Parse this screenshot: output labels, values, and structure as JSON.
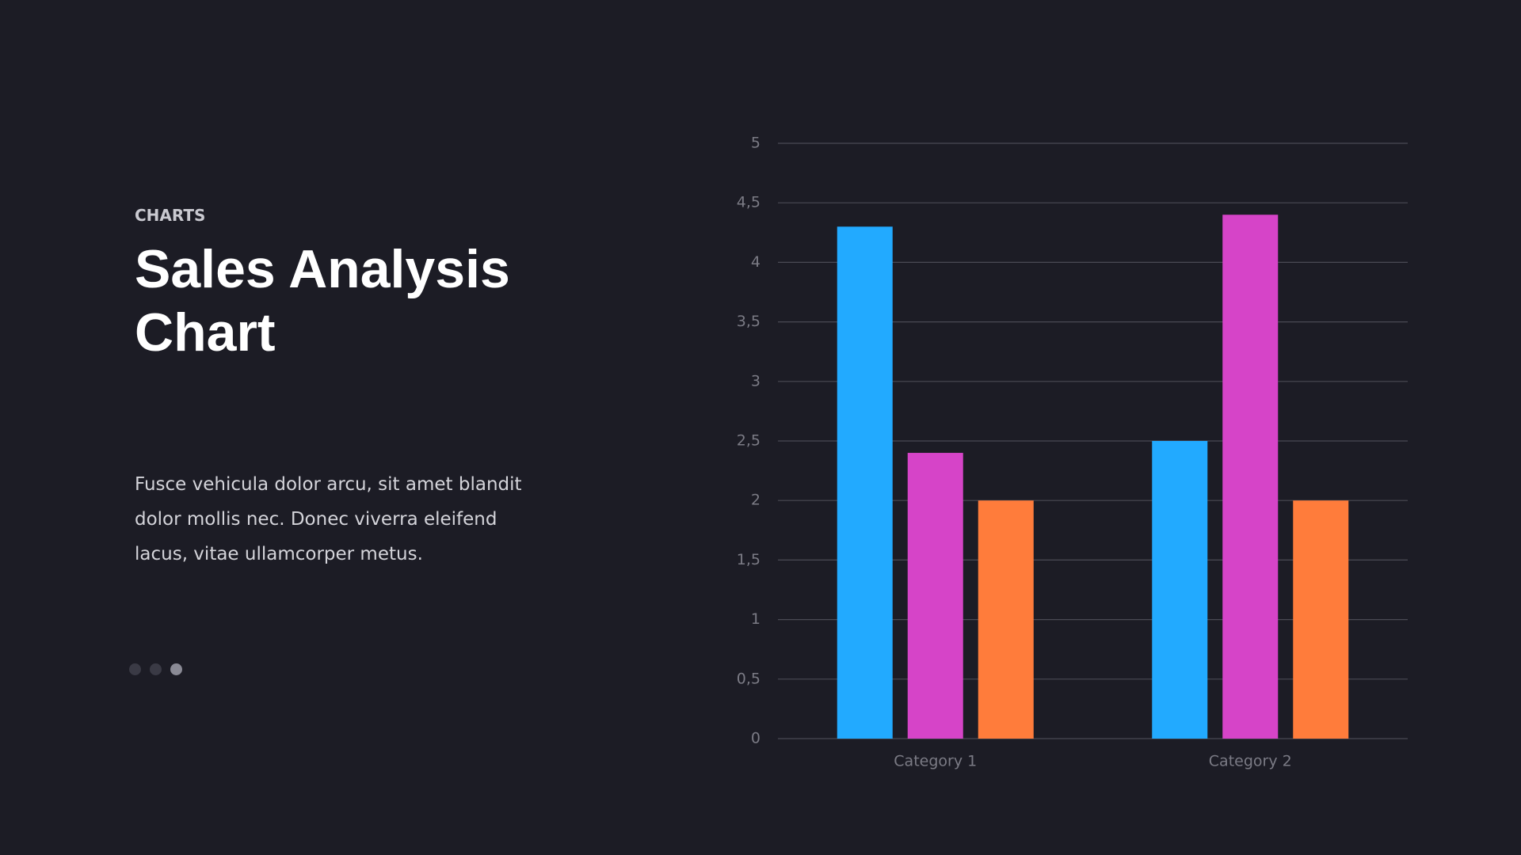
{
  "slide": {
    "eyebrow": "CHARTS",
    "title": "Sales Analysis Chart",
    "body": "Fusce vehicula dolor arcu, sit amet blandit dolor mollis nec. Donec viverra eleifend lacus, vitae ullamcorper metus."
  },
  "chart_data": {
    "type": "bar",
    "categories": [
      "Category 1",
      "Category 2"
    ],
    "series": [
      {
        "color": "#22aaff",
        "values": [
          4.3,
          2.5
        ]
      },
      {
        "color": "#d644c8",
        "values": [
          2.4,
          4.4
        ]
      },
      {
        "color": "#ff7c3b",
        "values": [
          2,
          2
        ]
      }
    ],
    "ylim": [
      0,
      5
    ],
    "yticks": [
      0,
      {
        "value": 0.5,
        "label": "0,5"
      },
      1,
      {
        "value": 1.5,
        "label": "1,5"
      },
      2,
      {
        "value": 2.5,
        "label": "2,5"
      },
      3,
      {
        "value": 3.5,
        "label": "3,5"
      },
      4,
      {
        "value": 4.5,
        "label": "4,5"
      },
      5
    ],
    "grid": true
  }
}
